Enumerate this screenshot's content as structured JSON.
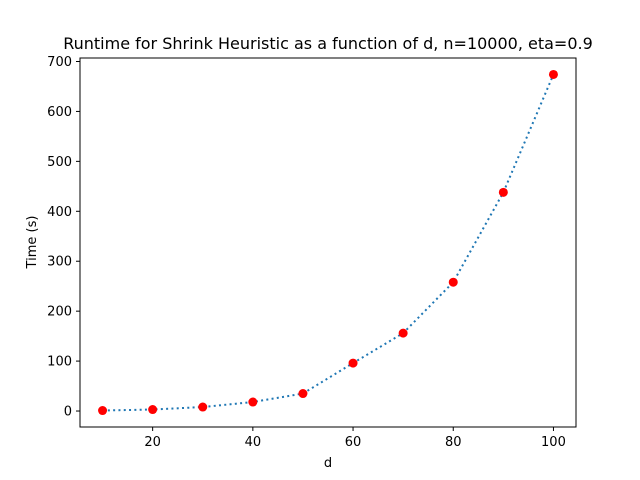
{
  "chart_data": {
    "type": "line",
    "title": "Runtime for Shrink Heuristic as a function of d, n=10000, eta=0.9",
    "xlabel": "d",
    "ylabel": "Time (s)",
    "x": [
      10,
      20,
      30,
      40,
      50,
      60,
      70,
      80,
      90,
      100
    ],
    "series": [
      {
        "values": [
          1,
          3,
          8,
          18,
          35,
          96,
          156,
          258,
          438,
          674
        ]
      }
    ],
    "xlim": [
      5.5,
      104.5
    ],
    "ylim": [
      -32,
      707
    ],
    "xticks": [
      "20",
      "40",
      "60",
      "80",
      "100"
    ],
    "yticks": [
      "0",
      "100",
      "200",
      "300",
      "400",
      "500",
      "600",
      "700"
    ],
    "line_style": "dotted",
    "line_color": "#1f77b4",
    "marker_color": "#ff0000",
    "grid": false,
    "legend": false
  }
}
